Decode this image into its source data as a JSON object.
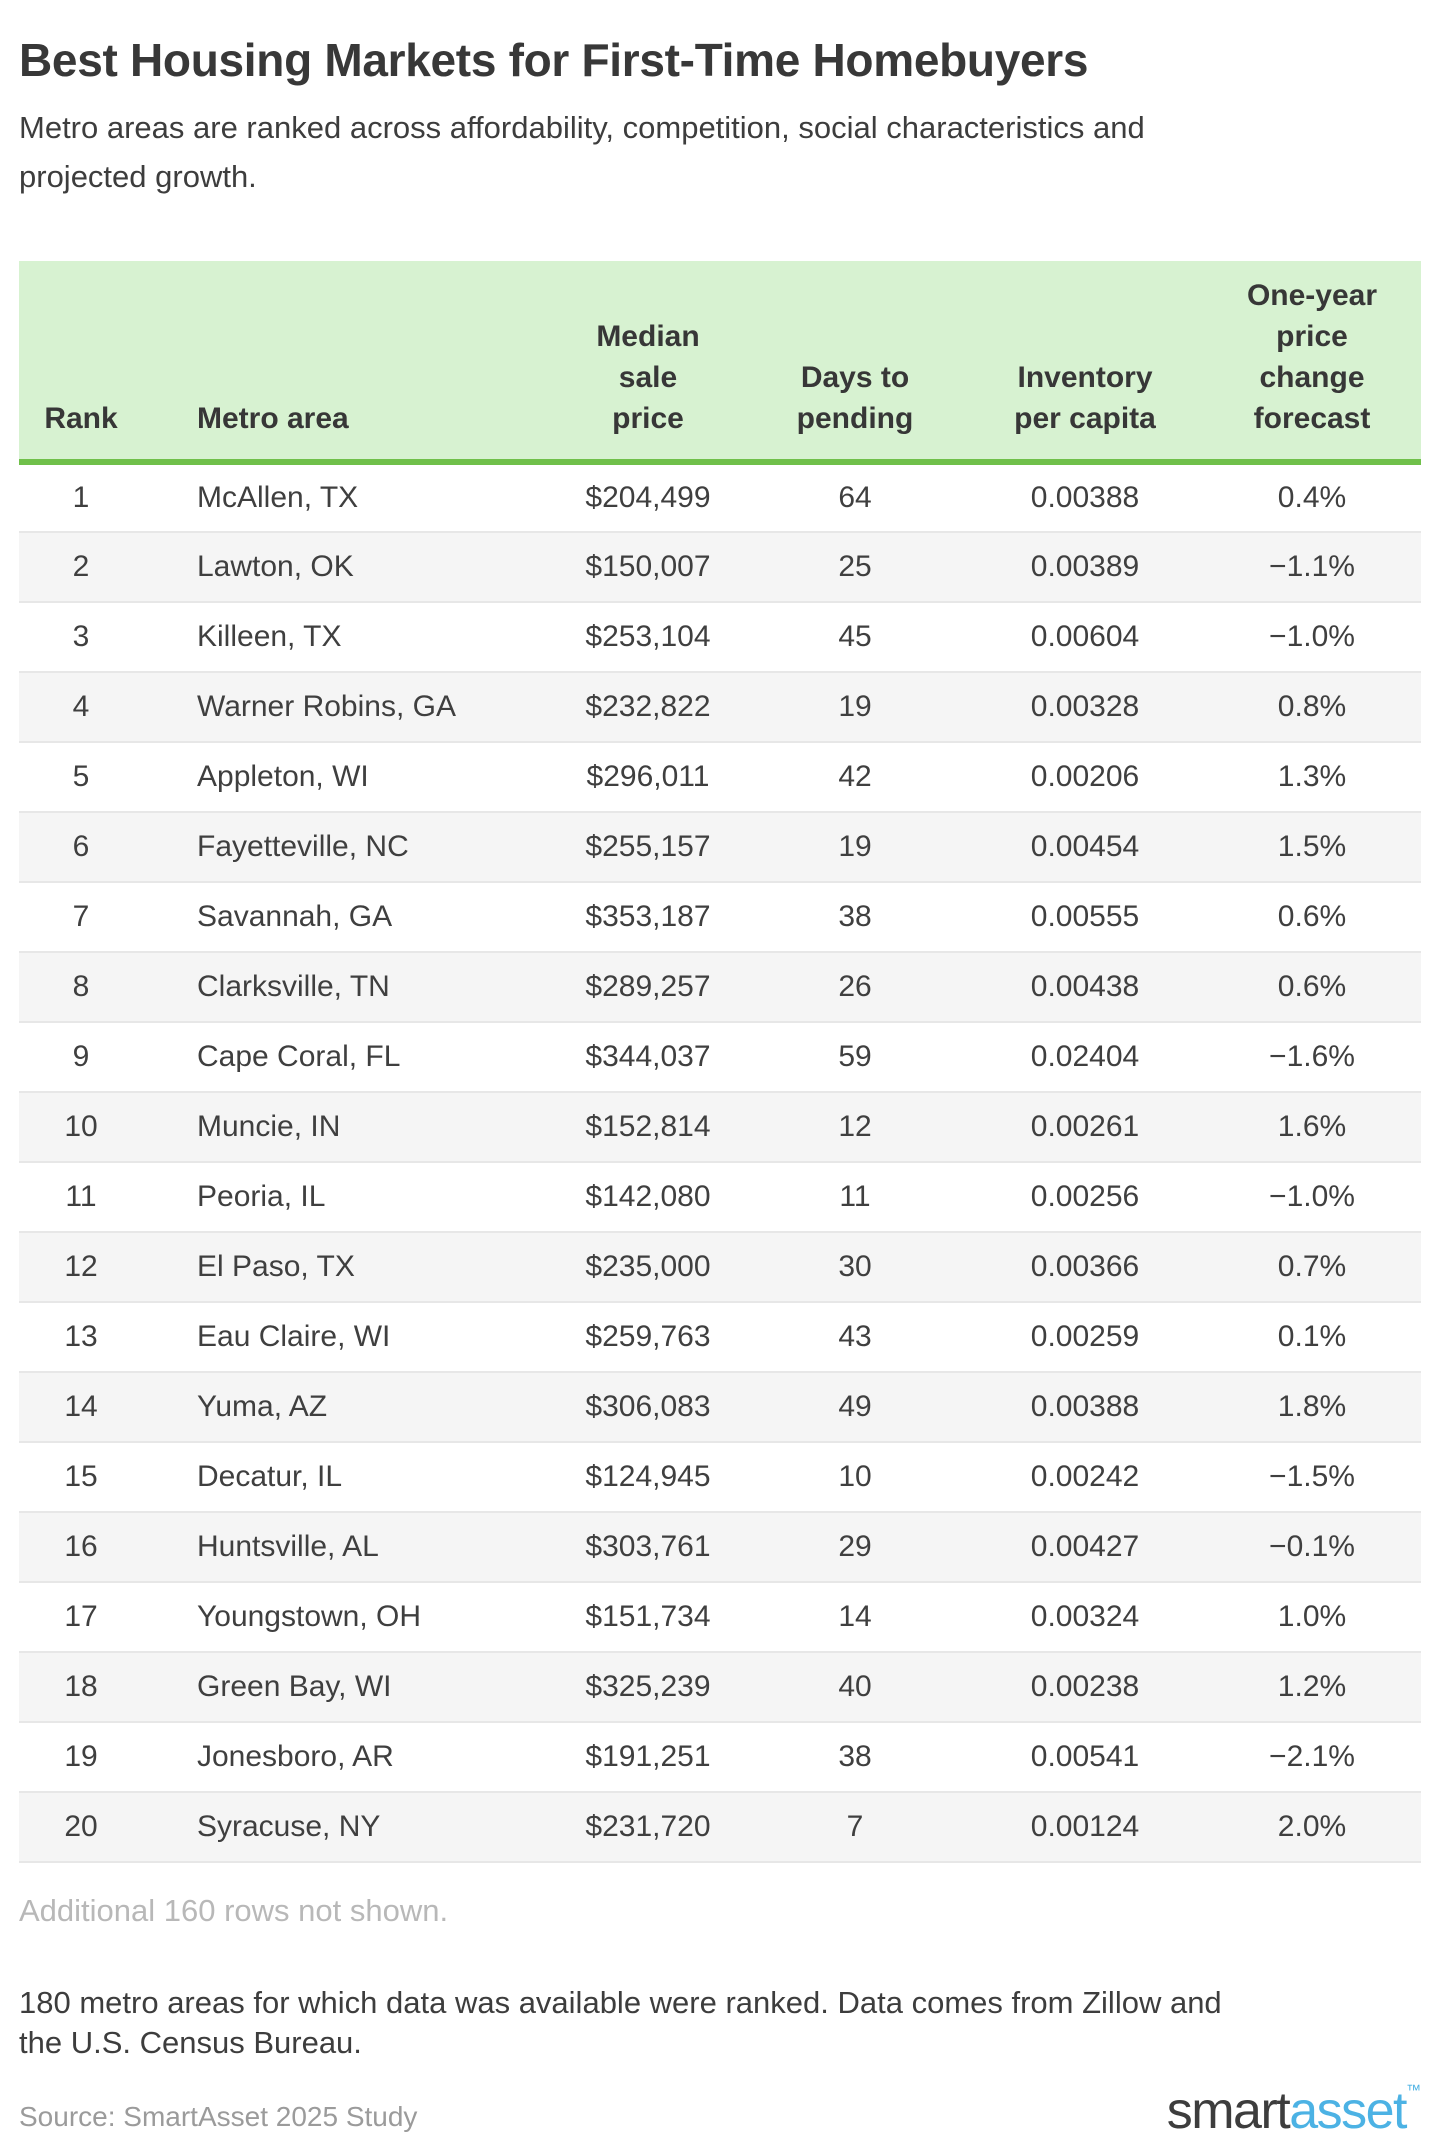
{
  "title": "Best Housing Markets for First-Time Homebuyers",
  "subtitle_lines": [
    "Metro areas are ranked across affordability, competition, social characteristics and",
    "projected growth."
  ],
  "chart_data": {
    "type": "table",
    "title": "Best Housing Markets for First-Time Homebuyers",
    "columns": [
      "Rank",
      "Metro area",
      "Median sale price",
      "Days to pending",
      "Inventory per capita",
      "One-year price change forecast"
    ],
    "header_lines": [
      [
        "Rank"
      ],
      [
        "Metro area"
      ],
      [
        "Median",
        "sale",
        "price"
      ],
      [
        "Days to",
        "pending"
      ],
      [
        "Inventory",
        "per capita"
      ],
      [
        "One-year",
        "price",
        "change",
        "forecast"
      ]
    ],
    "rows": [
      {
        "rank": "1",
        "metro": "McAllen, TX",
        "price": "$204,499",
        "days": "64",
        "inventory": "0.00388",
        "forecast": "0.4%"
      },
      {
        "rank": "2",
        "metro": "Lawton, OK",
        "price": "$150,007",
        "days": "25",
        "inventory": "0.00389",
        "forecast": "−1.1%"
      },
      {
        "rank": "3",
        "metro": "Killeen, TX",
        "price": "$253,104",
        "days": "45",
        "inventory": "0.00604",
        "forecast": "−1.0%"
      },
      {
        "rank": "4",
        "metro": "Warner Robins, GA",
        "price": "$232,822",
        "days": "19",
        "inventory": "0.00328",
        "forecast": "0.8%"
      },
      {
        "rank": "5",
        "metro": "Appleton, WI",
        "price": "$296,011",
        "days": "42",
        "inventory": "0.00206",
        "forecast": "1.3%"
      },
      {
        "rank": "6",
        "metro": "Fayetteville, NC",
        "price": "$255,157",
        "days": "19",
        "inventory": "0.00454",
        "forecast": "1.5%"
      },
      {
        "rank": "7",
        "metro": "Savannah, GA",
        "price": "$353,187",
        "days": "38",
        "inventory": "0.00555",
        "forecast": "0.6%"
      },
      {
        "rank": "8",
        "metro": "Clarksville, TN",
        "price": "$289,257",
        "days": "26",
        "inventory": "0.00438",
        "forecast": "0.6%"
      },
      {
        "rank": "9",
        "metro": "Cape Coral, FL",
        "price": "$344,037",
        "days": "59",
        "inventory": "0.02404",
        "forecast": "−1.6%"
      },
      {
        "rank": "10",
        "metro": "Muncie, IN",
        "price": "$152,814",
        "days": "12",
        "inventory": "0.00261",
        "forecast": "1.6%"
      },
      {
        "rank": "11",
        "metro": "Peoria, IL",
        "price": "$142,080",
        "days": "11",
        "inventory": "0.00256",
        "forecast": "−1.0%"
      },
      {
        "rank": "12",
        "metro": "El Paso, TX",
        "price": "$235,000",
        "days": "30",
        "inventory": "0.00366",
        "forecast": "0.7%"
      },
      {
        "rank": "13",
        "metro": "Eau Claire, WI",
        "price": "$259,763",
        "days": "43",
        "inventory": "0.00259",
        "forecast": "0.1%"
      },
      {
        "rank": "14",
        "metro": "Yuma, AZ",
        "price": "$306,083",
        "days": "49",
        "inventory": "0.00388",
        "forecast": "1.8%"
      },
      {
        "rank": "15",
        "metro": "Decatur, IL",
        "price": "$124,945",
        "days": "10",
        "inventory": "0.00242",
        "forecast": "−1.5%"
      },
      {
        "rank": "16",
        "metro": "Huntsville, AL",
        "price": "$303,761",
        "days": "29",
        "inventory": "0.00427",
        "forecast": "−0.1%"
      },
      {
        "rank": "17",
        "metro": "Youngstown, OH",
        "price": "$151,734",
        "days": "14",
        "inventory": "0.00324",
        "forecast": "1.0%"
      },
      {
        "rank": "18",
        "metro": "Green Bay, WI",
        "price": "$325,239",
        "days": "40",
        "inventory": "0.00238",
        "forecast": "1.2%"
      },
      {
        "rank": "19",
        "metro": "Jonesboro, AR",
        "price": "$191,251",
        "days": "38",
        "inventory": "0.00541",
        "forecast": "−2.1%"
      },
      {
        "rank": "20",
        "metro": "Syracuse, NY",
        "price": "$231,720",
        "days": "7",
        "inventory": "0.00124",
        "forecast": "2.0%"
      }
    ]
  },
  "footer": {
    "rows_note": "Additional 160 rows not shown.",
    "methodology_lines": [
      "180 metro areas for which data was available were ranked. Data comes from Zillow and",
      "the U.S. Census Bureau."
    ],
    "source": "Source: SmartAsset 2025 Study",
    "logo": {
      "part1": "smart",
      "part2": "asset",
      "tm": "™"
    }
  },
  "colors": {
    "header_bg": "#d7f2d1",
    "header_border_green": "#70c04a",
    "row_stripe": "#f5f5f5",
    "row_separator": "#e7e7e7",
    "text_dark": "#3d3d3d",
    "note_gray": "#b8b8b8",
    "source_gray": "#9b9b9b",
    "logo_dark": "#3d3d3d",
    "logo_blue": "#4cb2e4"
  }
}
